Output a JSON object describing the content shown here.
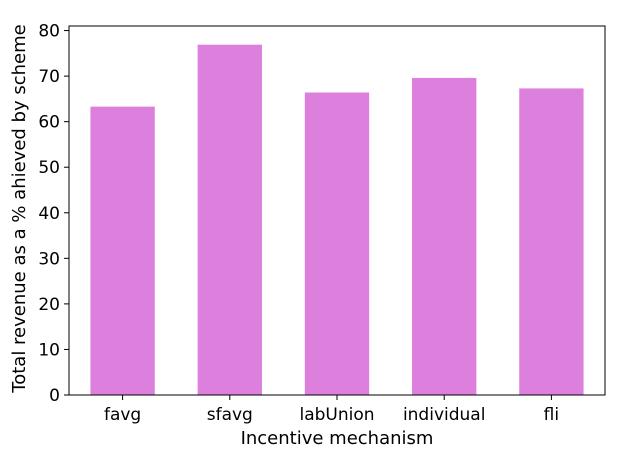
{
  "chart_data": {
    "type": "bar",
    "title": "",
    "xlabel": "Incentive mechanism",
    "ylabel": "Total revenue as a % ahieved by scheme",
    "categories": [
      "favg",
      "sfavg",
      "labUnion",
      "individual",
      "fli"
    ],
    "values": [
      63.3,
      76.9,
      66.4,
      69.6,
      67.3
    ],
    "ylim": [
      0,
      81
    ],
    "yticks": [
      0,
      10,
      20,
      30,
      40,
      50,
      60,
      70,
      80
    ],
    "grid": false,
    "legend": "none",
    "bar_color": "#dd7fdd"
  }
}
